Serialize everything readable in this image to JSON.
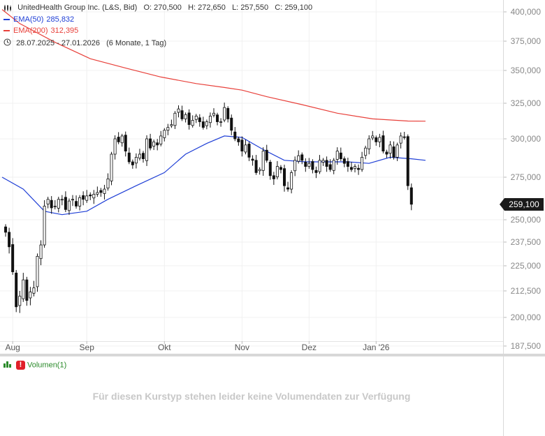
{
  "instrument": {
    "name": "UnitedHealth Group Inc. (L&S, Bid)",
    "ohlc": {
      "o_label": "O:",
      "o": "270,500",
      "h_label": "H:",
      "h": "272,650",
      "l_label": "L:",
      "l": "257,550",
      "c_label": "C:",
      "c": "259,100"
    },
    "range_text": "28.07.2025 - 27.01.2026",
    "range_detail": "(6 Monate, 1 Tag)"
  },
  "indicators": [
    {
      "label": "EMA(50)",
      "value": "285,832",
      "color": "#1f3fd6"
    },
    {
      "label": "EMA(200)",
      "value": "312,395",
      "color": "#e8403a"
    }
  ],
  "last_price_badge": "259,100",
  "volume_panel": {
    "label": "Volumen(1)",
    "message": "Für diesen Kurstyp stehen leider keine Volumendaten zur Verfügung"
  },
  "chart_data": {
    "type": "candlestick",
    "y_ticks": [
      "400,000",
      "375,000",
      "350,000",
      "325,000",
      "300,000",
      "275,000",
      "250,000",
      "237,500",
      "225,000",
      "212,500",
      "200,000",
      "187,500"
    ],
    "y_tick_values": [
      400,
      375,
      350,
      325,
      300,
      275,
      250,
      237.5,
      225,
      212.5,
      200,
      187.5
    ],
    "x_ticks": [
      {
        "label": "Aug",
        "index": 3
      },
      {
        "label": "Sep",
        "index": 24
      },
      {
        "label": "Okt",
        "index": 46
      },
      {
        "label": "Nov",
        "index": 68
      },
      {
        "label": "Dez",
        "index": 87
      },
      {
        "label": "Jan '26",
        "index": 106
      }
    ],
    "total_slots": 121,
    "start_index": 1,
    "closes": [
      243,
      235,
      222,
      205,
      210,
      218,
      208,
      212,
      214,
      230,
      236,
      258,
      262,
      257,
      258,
      262,
      262,
      256,
      261,
      262,
      258,
      263,
      262,
      264,
      264,
      265,
      266,
      266,
      268,
      274,
      290,
      300,
      298,
      302,
      292,
      285,
      283,
      288,
      290,
      287,
      300,
      294,
      298,
      296,
      302,
      306,
      308,
      310,
      318,
      321,
      314,
      317,
      310,
      313,
      316,
      312,
      308,
      312,
      316,
      318,
      312,
      312,
      322,
      314,
      306,
      300,
      298,
      292,
      296,
      288,
      286,
      278,
      280,
      292,
      286,
      276,
      274,
      282,
      280,
      270,
      268,
      278,
      286,
      289,
      286,
      282,
      284,
      280,
      278,
      286,
      286,
      282,
      280,
      286,
      292,
      287,
      284,
      282,
      280,
      282,
      280,
      288,
      294,
      300,
      302,
      298,
      301,
      292,
      290,
      296,
      288,
      296,
      302,
      301,
      270,
      259.1
    ],
    "highs_lows_note": "wick extents approximated around each candle",
    "ema50": [
      [
        0,
        275
      ],
      [
        6,
        268
      ],
      [
        12,
        255
      ],
      [
        17,
        253
      ],
      [
        24,
        255
      ],
      [
        30,
        262
      ],
      [
        38,
        270
      ],
      [
        46,
        278
      ],
      [
        52,
        290
      ],
      [
        58,
        297
      ],
      [
        63,
        302
      ],
      [
        68,
        301
      ],
      [
        74,
        293
      ],
      [
        80,
        286
      ],
      [
        86,
        285
      ],
      [
        92,
        285
      ],
      [
        98,
        285
      ],
      [
        104,
        284
      ],
      [
        110,
        288
      ],
      [
        116,
        287
      ],
      [
        120,
        286
      ]
    ],
    "ema200": [
      [
        0,
        402
      ],
      [
        5,
        390
      ],
      [
        15,
        374
      ],
      [
        25,
        360
      ],
      [
        35,
        352
      ],
      [
        45,
        345
      ],
      [
        55,
        340
      ],
      [
        63,
        337
      ],
      [
        68,
        335
      ],
      [
        75,
        330
      ],
      [
        85,
        324
      ],
      [
        95,
        318
      ],
      [
        105,
        314
      ],
      [
        115,
        312.5
      ],
      [
        120,
        312.4
      ]
    ],
    "ylim": [
      187.5,
      403
    ]
  }
}
